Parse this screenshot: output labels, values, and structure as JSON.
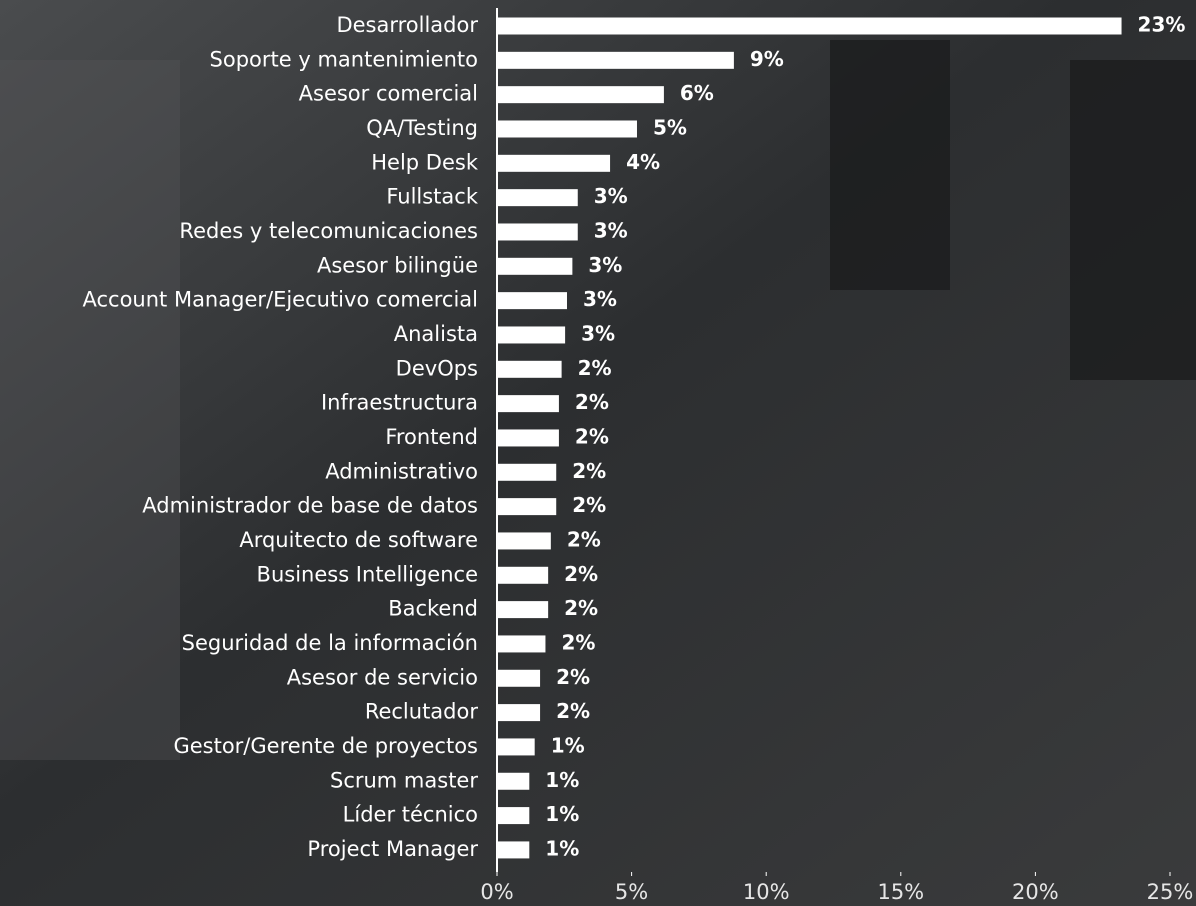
{
  "chart_data": {
    "type": "hbar",
    "categories": [
      "Desarrollador",
      "Soporte y mantenimiento",
      "Asesor comercial",
      "QA/Testing",
      "Help Desk",
      "Fullstack",
      "Redes y telecomunicaciones",
      "Asesor bilingüe",
      "Account Manager/Ejecutivo comercial",
      "Analista",
      "DevOps",
      "Infraestructura",
      "Frontend",
      "Administrativo",
      "Administrador de base de datos",
      "Arquitecto de software",
      "Business Intelligence",
      "Backend",
      "Seguridad de la información",
      "Asesor de servicio",
      "Reclutador",
      "Gestor/Gerente de proyectos",
      "Scrum master",
      "Líder técnico",
      "Project Manager"
    ],
    "values": [
      23.2,
      8.8,
      6.2,
      5.2,
      4.2,
      3.0,
      3.0,
      2.8,
      2.6,
      2.53,
      2.4,
      2.3,
      2.3,
      2.2,
      2.2,
      2.0,
      1.9,
      1.9,
      1.8,
      1.6,
      1.6,
      1.4,
      1.2,
      1.2,
      1.2
    ],
    "value_labels": [
      "23%",
      "9%",
      "6%",
      "5%",
      "4%",
      "3%",
      "3%",
      "3%",
      "3%",
      "3%",
      "2%",
      "2%",
      "2%",
      "2%",
      "2%",
      "2%",
      "2%",
      "2%",
      "2%",
      "2%",
      "2%",
      "1%",
      "1%",
      "1%",
      "1%"
    ],
    "color": "#ffffff",
    "xlim": [
      0,
      25
    ],
    "xticks": [
      {
        "value": 0,
        "label": "0%"
      },
      {
        "value": 5,
        "label": "5%"
      },
      {
        "value": 10,
        "label": "10%"
      },
      {
        "value": 15,
        "label": "15%"
      },
      {
        "value": 20,
        "label": "20%"
      },
      {
        "value": 25,
        "label": "25%"
      }
    ]
  }
}
